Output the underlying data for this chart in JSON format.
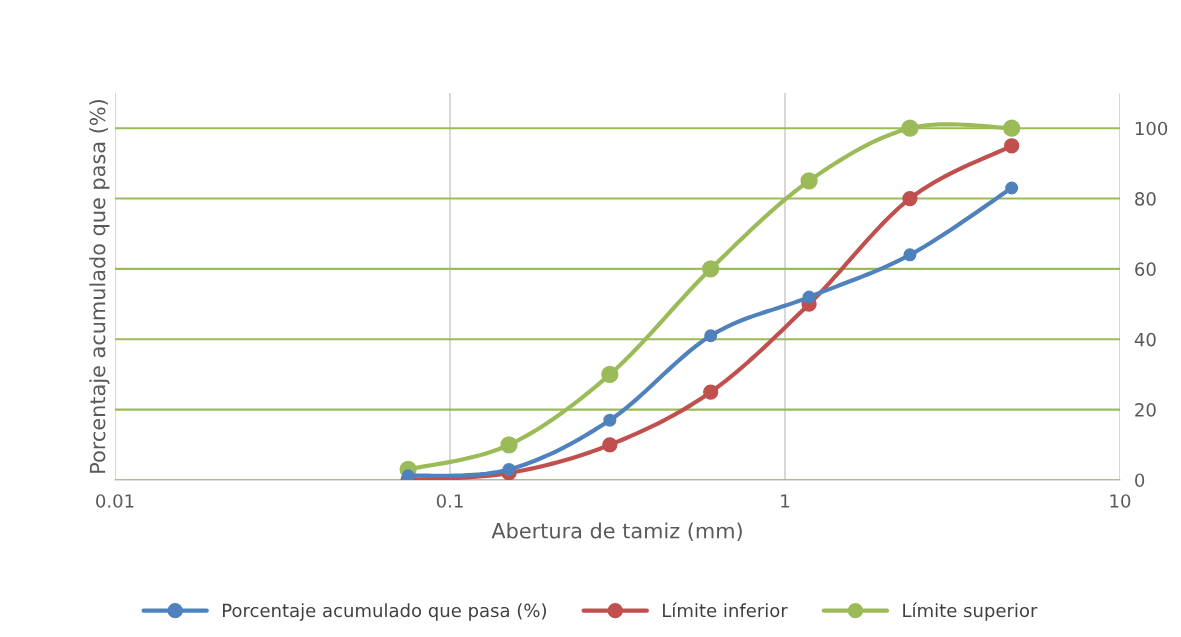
{
  "chart_data": {
    "type": "line",
    "xlabel": "Abertura de tamiz (mm)",
    "ylabel": "Porcentaje acumulado que pasa (%)",
    "x": [
      0.075,
      0.15,
      0.3,
      0.6,
      1.18,
      2.36,
      4.75
    ],
    "series": [
      {
        "name": "Porcentaje acumulado que pasa (%)",
        "color": "#4f81bd",
        "values": [
          1.2,
          3,
          17,
          41,
          52,
          64,
          83
        ]
      },
      {
        "name": "Límite inferior",
        "color": "#c0504d",
        "values": [
          0,
          2,
          10,
          25,
          50,
          80,
          95
        ]
      },
      {
        "name": "Límite superior",
        "color": "#9bbb59",
        "values": [
          3,
          10,
          30,
          60,
          85,
          100,
          100
        ]
      }
    ],
    "log": "x",
    "xlim": [
      0.01,
      10
    ],
    "xticks": [
      0.01,
      0.1,
      1,
      10
    ],
    "ylim": [
      0,
      110
    ],
    "yticks": [
      0,
      20,
      40,
      60,
      80,
      100
    ],
    "grid": true,
    "legend": "bottom",
    "marker": "circle",
    "line_style": "solid"
  }
}
